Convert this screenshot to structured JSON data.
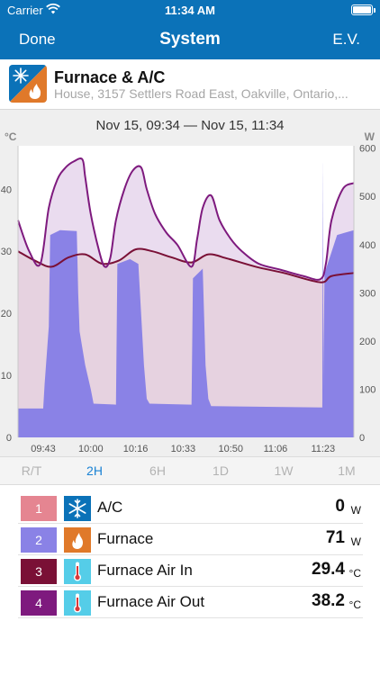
{
  "status_bar": {
    "carrier": "Carrier",
    "time": "11:34 AM"
  },
  "nav": {
    "left": "Done",
    "title": "System",
    "right": "E.V."
  },
  "device": {
    "name": "Furnace & A/C",
    "location": "House, 3157 Settlers Road East, Oakville, Ontario,..."
  },
  "chart_header": {
    "range": "Nov 15, 09:34 — Nov 15, 11:34",
    "unit_left": "°C",
    "unit_right": "W"
  },
  "tabs": [
    {
      "label": "R/T",
      "active": false
    },
    {
      "label": "2H",
      "active": true
    },
    {
      "label": "6H",
      "active": false
    },
    {
      "label": "1D",
      "active": false
    },
    {
      "label": "1W",
      "active": false
    },
    {
      "label": "1M",
      "active": false
    }
  ],
  "channels": [
    {
      "num": "1",
      "name": "A/C",
      "value": "0",
      "unit": "W",
      "color": "#e58591",
      "icon": "snowflake-icon"
    },
    {
      "num": "2",
      "name": "Furnace",
      "value": "71",
      "unit": "W",
      "color": "#8a82e6",
      "icon": "flame-icon"
    },
    {
      "num": "3",
      "name": "Furnace Air In",
      "value": "29.4",
      "unit": "°C",
      "color": "#7a1036",
      "icon": "thermometer-icon"
    },
    {
      "num": "4",
      "name": "Furnace Air Out",
      "value": "38.2",
      "unit": "°C",
      "color": "#7e1a7e",
      "icon": "thermometer-icon"
    }
  ],
  "colors": {
    "header": "#0b72b8",
    "furnace_fill": "#8a82e6",
    "air_in_line": "#7a1036",
    "air_out_line": "#7e1a7e"
  },
  "chart_data": {
    "type": "area",
    "x_ticks": [
      "09:43",
      "10:00",
      "10:16",
      "10:33",
      "10:50",
      "11:06",
      "11:23"
    ],
    "x_range": [
      "09:34",
      "11:34"
    ],
    "y_left": {
      "label": "°C",
      "ticks": [
        0,
        10,
        20,
        30,
        40
      ],
      "range": [
        0,
        47
      ]
    },
    "y_right": {
      "label": "W",
      "ticks": [
        0,
        100,
        200,
        300,
        400,
        500,
        600
      ],
      "range": [
        0,
        605
      ]
    },
    "series": [
      {
        "name": "Furnace",
        "axis": "right",
        "points": [
          [
            0,
            60
          ],
          [
            9,
            60
          ],
          [
            9.5,
            110
          ],
          [
            11,
            230
          ],
          [
            11.5,
            420
          ],
          [
            15,
            430
          ],
          [
            21,
            428
          ],
          [
            21.5,
            300
          ],
          [
            22,
            220
          ],
          [
            24,
            150
          ],
          [
            26,
            100
          ],
          [
            27,
            70
          ],
          [
            35,
            68
          ],
          [
            35.5,
            360
          ],
          [
            40,
            370
          ],
          [
            43,
            360
          ],
          [
            45,
            150
          ],
          [
            46,
            80
          ],
          [
            47,
            70
          ],
          [
            62,
            68
          ],
          [
            62.5,
            330
          ],
          [
            66,
            350
          ],
          [
            67,
            150
          ],
          [
            68,
            80
          ],
          [
            69,
            65
          ],
          [
            109,
            62
          ],
          [
            109.5,
            340
          ],
          [
            114,
            420
          ],
          [
            120,
            430
          ]
        ]
      },
      {
        "name": "Furnace Air In",
        "axis": "left",
        "points": [
          [
            0,
            30
          ],
          [
            6,
            28.5
          ],
          [
            12,
            27.5
          ],
          [
            18,
            29
          ],
          [
            24,
            29.5
          ],
          [
            30,
            28
          ],
          [
            36,
            28.5
          ],
          [
            42,
            30.3
          ],
          [
            48,
            30
          ],
          [
            55,
            29
          ],
          [
            62,
            28.2
          ],
          [
            68,
            29.5
          ],
          [
            75,
            28.8
          ],
          [
            85,
            27.5
          ],
          [
            95,
            26.5
          ],
          [
            108,
            25
          ],
          [
            112,
            26
          ],
          [
            120,
            26.5
          ]
        ]
      },
      {
        "name": "Furnace Air Out",
        "axis": "left",
        "points": [
          [
            0,
            35
          ],
          [
            4,
            30
          ],
          [
            8,
            28
          ],
          [
            11,
            37
          ],
          [
            14,
            41.5
          ],
          [
            17,
            43.5
          ],
          [
            20,
            44.5
          ],
          [
            23,
            44.8
          ],
          [
            24,
            42
          ],
          [
            26,
            36
          ],
          [
            29,
            30
          ],
          [
            31,
            27.5
          ],
          [
            33,
            29
          ],
          [
            35,
            35
          ],
          [
            38,
            40
          ],
          [
            41,
            43
          ],
          [
            44,
            43.5
          ],
          [
            46,
            40
          ],
          [
            49,
            36
          ],
          [
            53,
            33
          ],
          [
            57,
            31
          ],
          [
            62,
            27.5
          ],
          [
            64,
            32
          ],
          [
            66,
            37
          ],
          [
            69,
            39
          ],
          [
            72,
            35
          ],
          [
            76,
            32
          ],
          [
            80,
            30
          ],
          [
            86,
            28
          ],
          [
            94,
            27
          ],
          [
            102,
            26
          ],
          [
            108,
            25.5
          ],
          [
            110,
            28
          ],
          [
            112,
            35
          ],
          [
            116,
            40
          ],
          [
            120,
            41
          ]
        ]
      }
    ]
  }
}
